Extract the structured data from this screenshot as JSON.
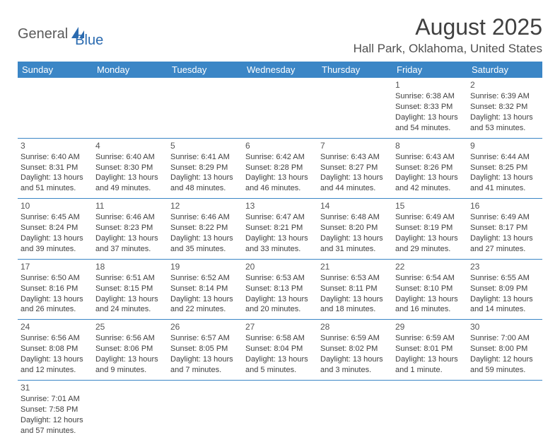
{
  "logo": {
    "general": "General",
    "blue": "Blue",
    "accent_color": "#2b6bb0"
  },
  "title": "August 2025",
  "location": "Hall Park, Oklahoma, United States",
  "header_bg": "#3b86c6",
  "weekdays": [
    "Sunday",
    "Monday",
    "Tuesday",
    "Wednesday",
    "Thursday",
    "Friday",
    "Saturday"
  ],
  "weeks": [
    [
      null,
      null,
      null,
      null,
      null,
      {
        "n": "1",
        "sr": "Sunrise: 6:38 AM",
        "ss": "Sunset: 8:33 PM",
        "dl": "Daylight: 13 hours and 54 minutes."
      },
      {
        "n": "2",
        "sr": "Sunrise: 6:39 AM",
        "ss": "Sunset: 8:32 PM",
        "dl": "Daylight: 13 hours and 53 minutes."
      }
    ],
    [
      {
        "n": "3",
        "sr": "Sunrise: 6:40 AM",
        "ss": "Sunset: 8:31 PM",
        "dl": "Daylight: 13 hours and 51 minutes."
      },
      {
        "n": "4",
        "sr": "Sunrise: 6:40 AM",
        "ss": "Sunset: 8:30 PM",
        "dl": "Daylight: 13 hours and 49 minutes."
      },
      {
        "n": "5",
        "sr": "Sunrise: 6:41 AM",
        "ss": "Sunset: 8:29 PM",
        "dl": "Daylight: 13 hours and 48 minutes."
      },
      {
        "n": "6",
        "sr": "Sunrise: 6:42 AM",
        "ss": "Sunset: 8:28 PM",
        "dl": "Daylight: 13 hours and 46 minutes."
      },
      {
        "n": "7",
        "sr": "Sunrise: 6:43 AM",
        "ss": "Sunset: 8:27 PM",
        "dl": "Daylight: 13 hours and 44 minutes."
      },
      {
        "n": "8",
        "sr": "Sunrise: 6:43 AM",
        "ss": "Sunset: 8:26 PM",
        "dl": "Daylight: 13 hours and 42 minutes."
      },
      {
        "n": "9",
        "sr": "Sunrise: 6:44 AM",
        "ss": "Sunset: 8:25 PM",
        "dl": "Daylight: 13 hours and 41 minutes."
      }
    ],
    [
      {
        "n": "10",
        "sr": "Sunrise: 6:45 AM",
        "ss": "Sunset: 8:24 PM",
        "dl": "Daylight: 13 hours and 39 minutes."
      },
      {
        "n": "11",
        "sr": "Sunrise: 6:46 AM",
        "ss": "Sunset: 8:23 PM",
        "dl": "Daylight: 13 hours and 37 minutes."
      },
      {
        "n": "12",
        "sr": "Sunrise: 6:46 AM",
        "ss": "Sunset: 8:22 PM",
        "dl": "Daylight: 13 hours and 35 minutes."
      },
      {
        "n": "13",
        "sr": "Sunrise: 6:47 AM",
        "ss": "Sunset: 8:21 PM",
        "dl": "Daylight: 13 hours and 33 minutes."
      },
      {
        "n": "14",
        "sr": "Sunrise: 6:48 AM",
        "ss": "Sunset: 8:20 PM",
        "dl": "Daylight: 13 hours and 31 minutes."
      },
      {
        "n": "15",
        "sr": "Sunrise: 6:49 AM",
        "ss": "Sunset: 8:19 PM",
        "dl": "Daylight: 13 hours and 29 minutes."
      },
      {
        "n": "16",
        "sr": "Sunrise: 6:49 AM",
        "ss": "Sunset: 8:17 PM",
        "dl": "Daylight: 13 hours and 27 minutes."
      }
    ],
    [
      {
        "n": "17",
        "sr": "Sunrise: 6:50 AM",
        "ss": "Sunset: 8:16 PM",
        "dl": "Daylight: 13 hours and 26 minutes."
      },
      {
        "n": "18",
        "sr": "Sunrise: 6:51 AM",
        "ss": "Sunset: 8:15 PM",
        "dl": "Daylight: 13 hours and 24 minutes."
      },
      {
        "n": "19",
        "sr": "Sunrise: 6:52 AM",
        "ss": "Sunset: 8:14 PM",
        "dl": "Daylight: 13 hours and 22 minutes."
      },
      {
        "n": "20",
        "sr": "Sunrise: 6:53 AM",
        "ss": "Sunset: 8:13 PM",
        "dl": "Daylight: 13 hours and 20 minutes."
      },
      {
        "n": "21",
        "sr": "Sunrise: 6:53 AM",
        "ss": "Sunset: 8:11 PM",
        "dl": "Daylight: 13 hours and 18 minutes."
      },
      {
        "n": "22",
        "sr": "Sunrise: 6:54 AM",
        "ss": "Sunset: 8:10 PM",
        "dl": "Daylight: 13 hours and 16 minutes."
      },
      {
        "n": "23",
        "sr": "Sunrise: 6:55 AM",
        "ss": "Sunset: 8:09 PM",
        "dl": "Daylight: 13 hours and 14 minutes."
      }
    ],
    [
      {
        "n": "24",
        "sr": "Sunrise: 6:56 AM",
        "ss": "Sunset: 8:08 PM",
        "dl": "Daylight: 13 hours and 12 minutes."
      },
      {
        "n": "25",
        "sr": "Sunrise: 6:56 AM",
        "ss": "Sunset: 8:06 PM",
        "dl": "Daylight: 13 hours and 9 minutes."
      },
      {
        "n": "26",
        "sr": "Sunrise: 6:57 AM",
        "ss": "Sunset: 8:05 PM",
        "dl": "Daylight: 13 hours and 7 minutes."
      },
      {
        "n": "27",
        "sr": "Sunrise: 6:58 AM",
        "ss": "Sunset: 8:04 PM",
        "dl": "Daylight: 13 hours and 5 minutes."
      },
      {
        "n": "28",
        "sr": "Sunrise: 6:59 AM",
        "ss": "Sunset: 8:02 PM",
        "dl": "Daylight: 13 hours and 3 minutes."
      },
      {
        "n": "29",
        "sr": "Sunrise: 6:59 AM",
        "ss": "Sunset: 8:01 PM",
        "dl": "Daylight: 13 hours and 1 minute."
      },
      {
        "n": "30",
        "sr": "Sunrise: 7:00 AM",
        "ss": "Sunset: 8:00 PM",
        "dl": "Daylight: 12 hours and 59 minutes."
      }
    ],
    [
      {
        "n": "31",
        "sr": "Sunrise: 7:01 AM",
        "ss": "Sunset: 7:58 PM",
        "dl": "Daylight: 12 hours and 57 minutes."
      },
      null,
      null,
      null,
      null,
      null,
      null
    ]
  ]
}
